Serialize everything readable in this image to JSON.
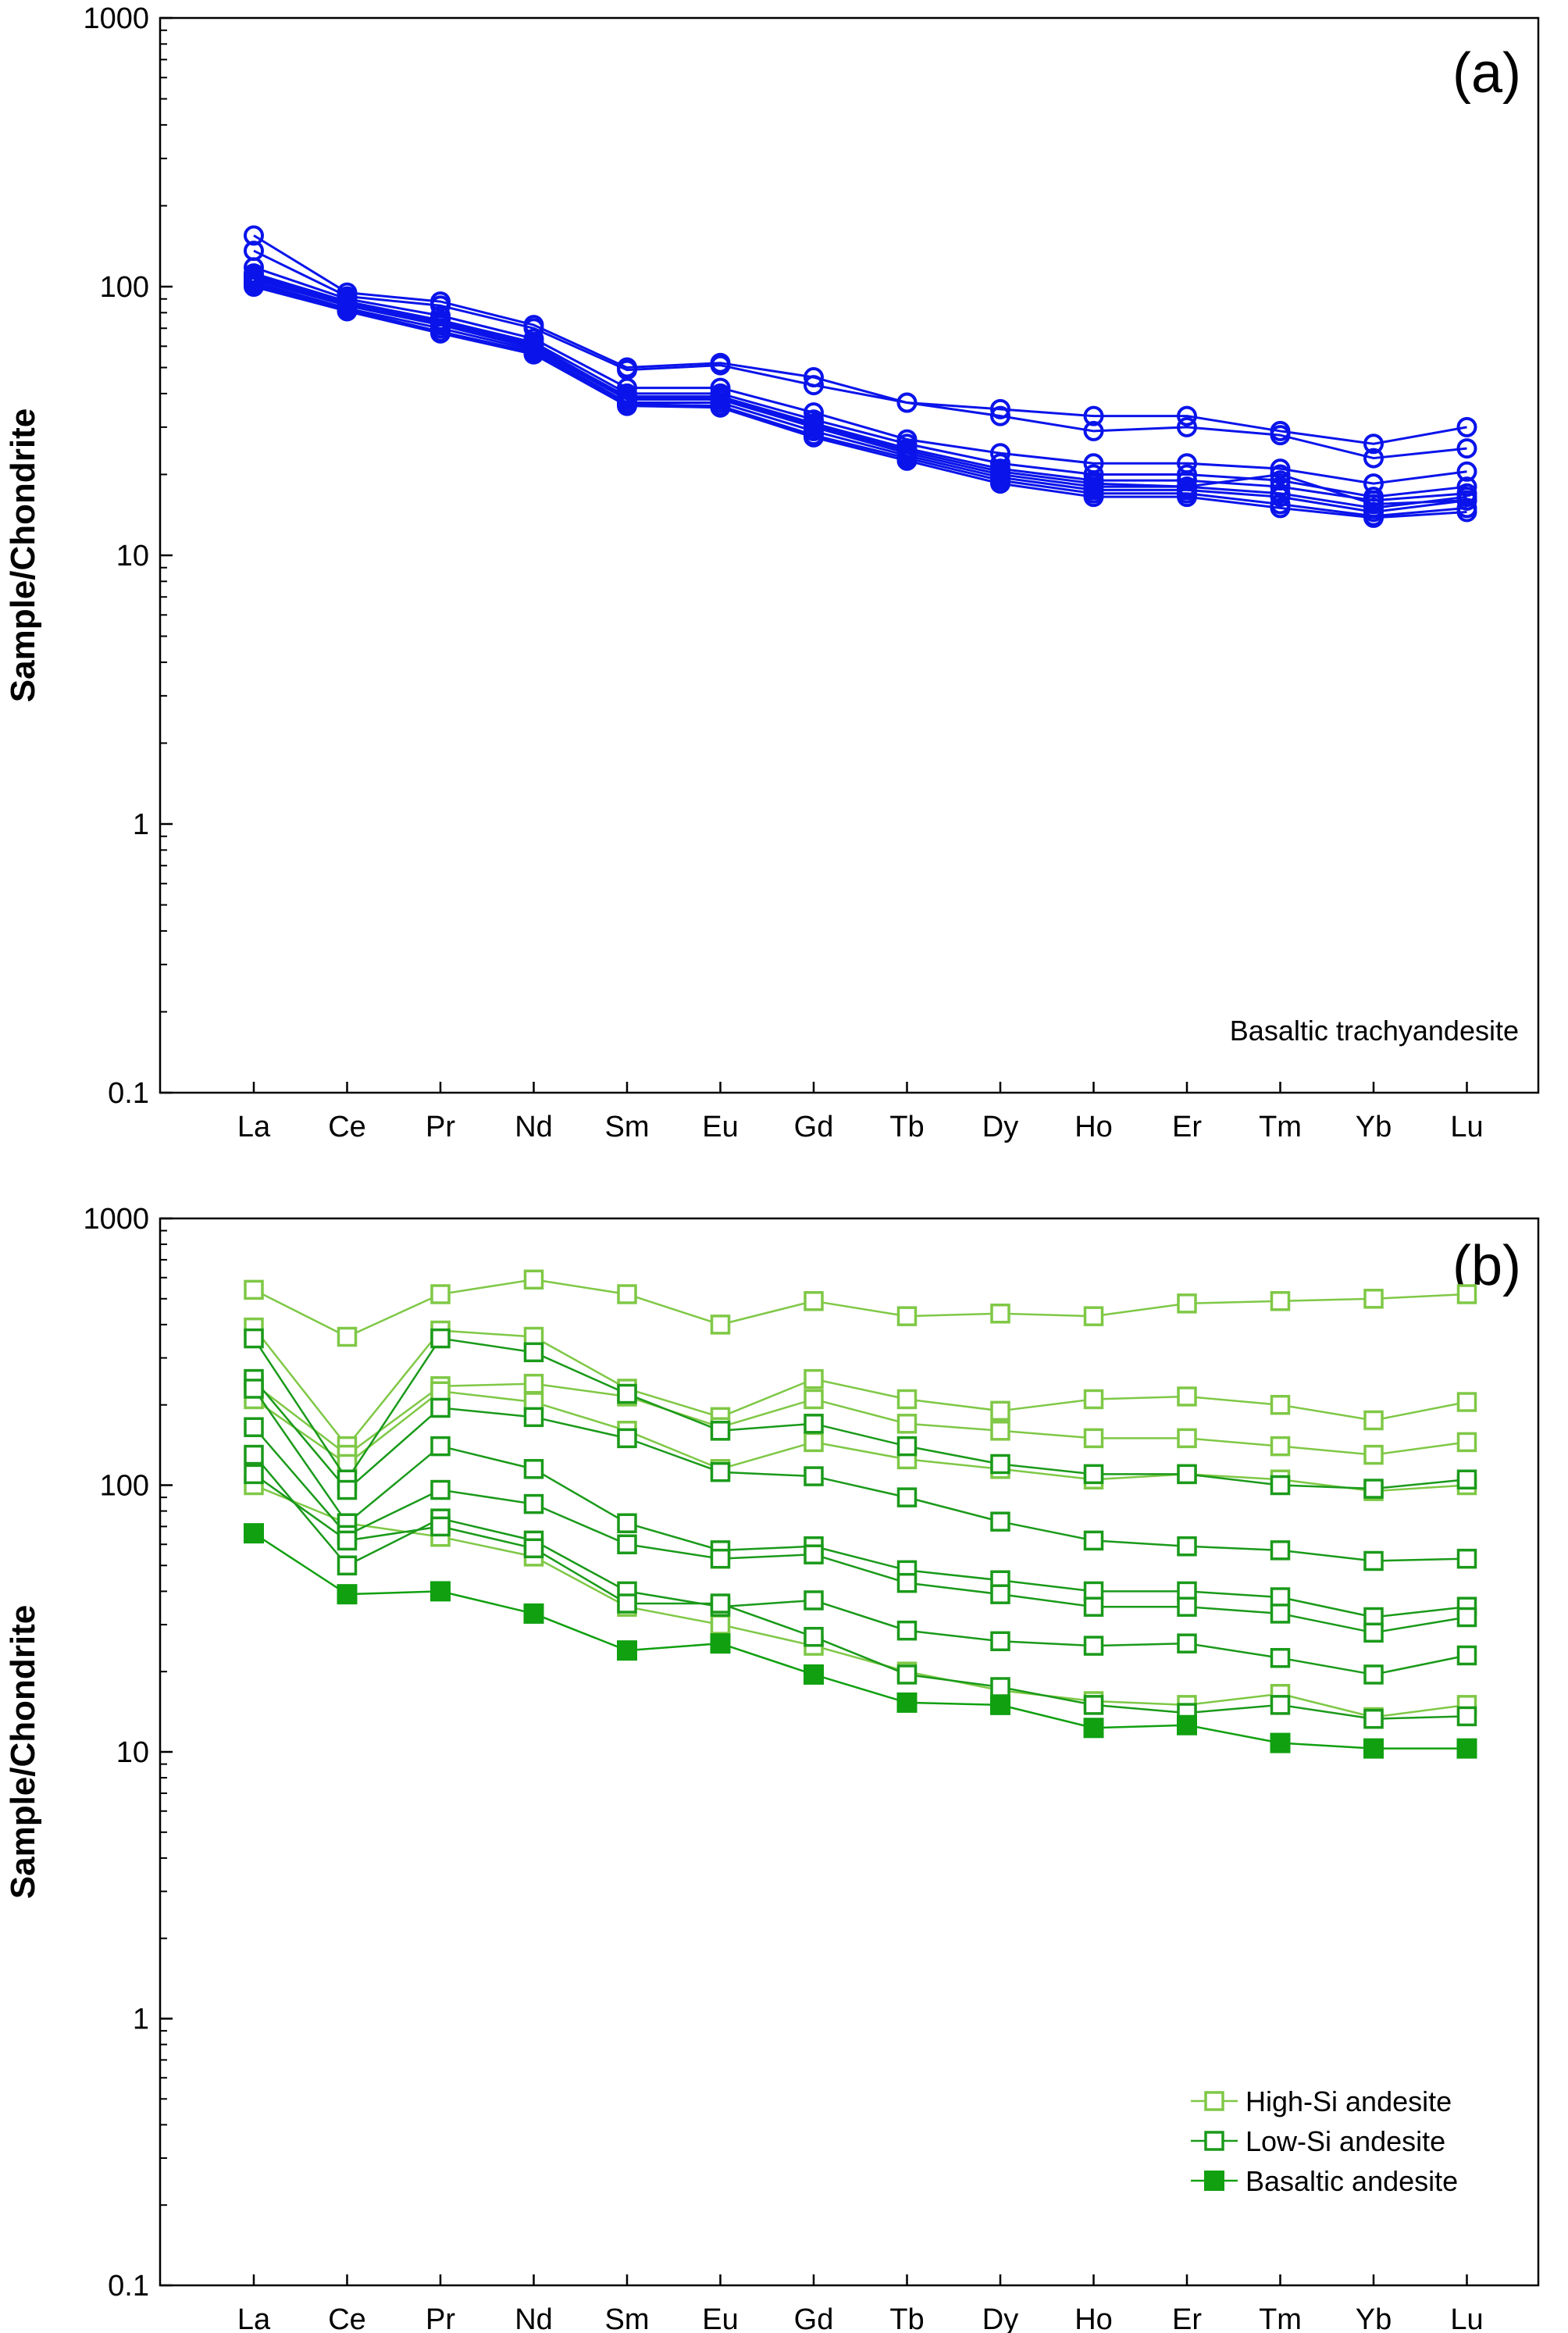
{
  "chart_data": [
    {
      "type": "line",
      "panel_tag": "(a)",
      "annotation": "Basaltic trachyandesite",
      "ylabel": "Sample/Chondrite",
      "yscale": "log",
      "ylim": [
        0.1,
        1000
      ],
      "yticks": [
        "0.1",
        "1",
        "10",
        "100",
        "1000"
      ],
      "categories": [
        "La",
        "Ce",
        "Pr",
        "Nd",
        "Sm",
        "Eu",
        "Gd",
        "Tb",
        "Dy",
        "Ho",
        "Er",
        "Tm",
        "Yb",
        "Lu"
      ],
      "series": [
        {
          "group": "basaltic-trachyandesite",
          "values": [
            155,
            95,
            88,
            72,
            50,
            52,
            46,
            37,
            35,
            33,
            33,
            29,
            26,
            30
          ]
        },
        {
          "group": "basaltic-trachyandesite",
          "values": [
            136,
            92,
            85,
            70,
            49,
            51,
            43,
            37,
            33,
            29,
            30,
            28,
            23,
            25
          ]
        },
        {
          "group": "basaltic-trachyandesite",
          "values": [
            118,
            90,
            78,
            64,
            42,
            42,
            34,
            27,
            24,
            22,
            22,
            21,
            18.5,
            20.5
          ]
        },
        {
          "group": "basaltic-trachyandesite",
          "values": [
            112,
            88,
            75,
            62,
            40,
            40,
            32,
            26,
            22,
            20,
            20,
            19,
            16.5,
            18
          ]
        },
        {
          "group": "basaltic-trachyandesite",
          "values": [
            108,
            86,
            73,
            60,
            39,
            39,
            31,
            25,
            21,
            19,
            19,
            18,
            16,
            17
          ]
        },
        {
          "group": "basaltic-trachyandesite",
          "values": [
            106,
            85,
            72,
            59,
            38,
            38,
            30,
            24,
            20,
            18,
            18,
            17,
            15,
            16.5
          ]
        },
        {
          "group": "basaltic-trachyandesite",
          "values": [
            104,
            83,
            70,
            58,
            37,
            37,
            29,
            23.5,
            19.5,
            17.5,
            17.5,
            16.5,
            14.5,
            16
          ]
        },
        {
          "group": "basaltic-trachyandesite",
          "values": [
            102,
            82,
            68,
            57,
            36.5,
            36,
            28,
            23,
            19,
            17,
            17,
            15.5,
            14,
            15
          ]
        },
        {
          "group": "basaltic-trachyandesite",
          "values": [
            100,
            81,
            67,
            56,
            36,
            35.5,
            27.5,
            22.5,
            18.5,
            16.5,
            16.5,
            15,
            13.8,
            14.5
          ]
        },
        {
          "group": "basaltic-trachyandesite",
          "values": [
            110,
            87,
            74,
            61,
            38.5,
            38.5,
            30.5,
            24.5,
            20.5,
            18.5,
            18,
            20,
            15.5,
            16
          ]
        }
      ],
      "color": "#0a14ea"
    },
    {
      "type": "line",
      "panel_tag": "(b)",
      "ylabel": "Sample/Chondrite",
      "yscale": "log",
      "ylim": [
        0.1,
        1000
      ],
      "yticks": [
        "0.1",
        "1",
        "10",
        "100",
        "1000"
      ],
      "categories": [
        "La",
        "Ce",
        "Pr",
        "Nd",
        "Sm",
        "Eu",
        "Gd",
        "Tb",
        "Dy",
        "Ho",
        "Er",
        "Tm",
        "Yb",
        "Lu"
      ],
      "legend_position": "bottom-right",
      "legend": [
        {
          "label": "High-Si andesite",
          "color": "#7fc846",
          "marker": "open-square"
        },
        {
          "label": "Low-Si andesite",
          "color": "#1a9a1a",
          "marker": "open-square"
        },
        {
          "label": "Basaltic andesite",
          "color": "#10a010",
          "marker": "filled-square"
        }
      ],
      "series": [
        {
          "group": "High-Si andesite",
          "values": [
            540,
            360,
            520,
            590,
            520,
            400,
            490,
            430,
            440,
            430,
            480,
            490,
            500,
            520
          ]
        },
        {
          "group": "High-Si andesite",
          "values": [
            390,
            140,
            380,
            360,
            230,
            180,
            250,
            210,
            190,
            210,
            215,
            200,
            175,
            205
          ]
        },
        {
          "group": "High-Si andesite",
          "values": [
            240,
            130,
            235,
            240,
            215,
            165,
            210,
            170,
            160,
            150,
            150,
            140,
            130,
            145
          ]
        },
        {
          "group": "High-Si andesite",
          "values": [
            210,
            120,
            225,
            205,
            160,
            115,
            145,
            125,
            115,
            105,
            110,
            105,
            95,
            100
          ]
        },
        {
          "group": "High-Si andesite",
          "values": [
            100,
            72,
            64,
            54,
            35,
            30,
            25,
            20,
            17,
            15.5,
            15,
            16.5,
            13.5,
            15
          ]
        },
        {
          "group": "Low-Si andesite",
          "values": [
            355,
            105,
            355,
            315,
            220,
            160,
            170,
            140,
            120,
            110,
            110,
            100,
            97,
            105
          ]
        },
        {
          "group": "Low-Si andesite",
          "values": [
            250,
            96,
            195,
            180,
            150,
            112,
            108,
            90,
            73,
            62,
            59,
            57,
            52,
            53
          ]
        },
        {
          "group": "Low-Si andesite",
          "values": [
            230,
            72,
            140,
            115,
            72,
            57,
            59,
            48,
            44,
            40,
            40,
            38,
            32,
            35
          ]
        },
        {
          "group": "Low-Si andesite",
          "values": [
            165,
            65,
            96,
            85,
            60,
            53,
            55,
            43,
            39,
            35,
            35,
            33,
            28,
            32
          ]
        },
        {
          "group": "Low-Si andesite",
          "values": [
            130,
            50,
            75,
            62,
            40,
            35,
            37,
            28.5,
            26,
            25,
            25.5,
            22.5,
            19.5,
            23
          ]
        },
        {
          "group": "Low-Si andesite",
          "values": [
            110,
            62,
            70,
            58,
            36,
            36,
            27,
            19.5,
            17.5,
            15,
            14,
            15,
            13.3,
            13.6
          ]
        },
        {
          "group": "Basaltic andesite",
          "values": [
            66,
            39,
            40,
            33,
            24,
            25.5,
            19.5,
            15.3,
            15,
            12.3,
            12.6,
            10.8,
            10.3,
            10.3
          ]
        }
      ]
    }
  ]
}
